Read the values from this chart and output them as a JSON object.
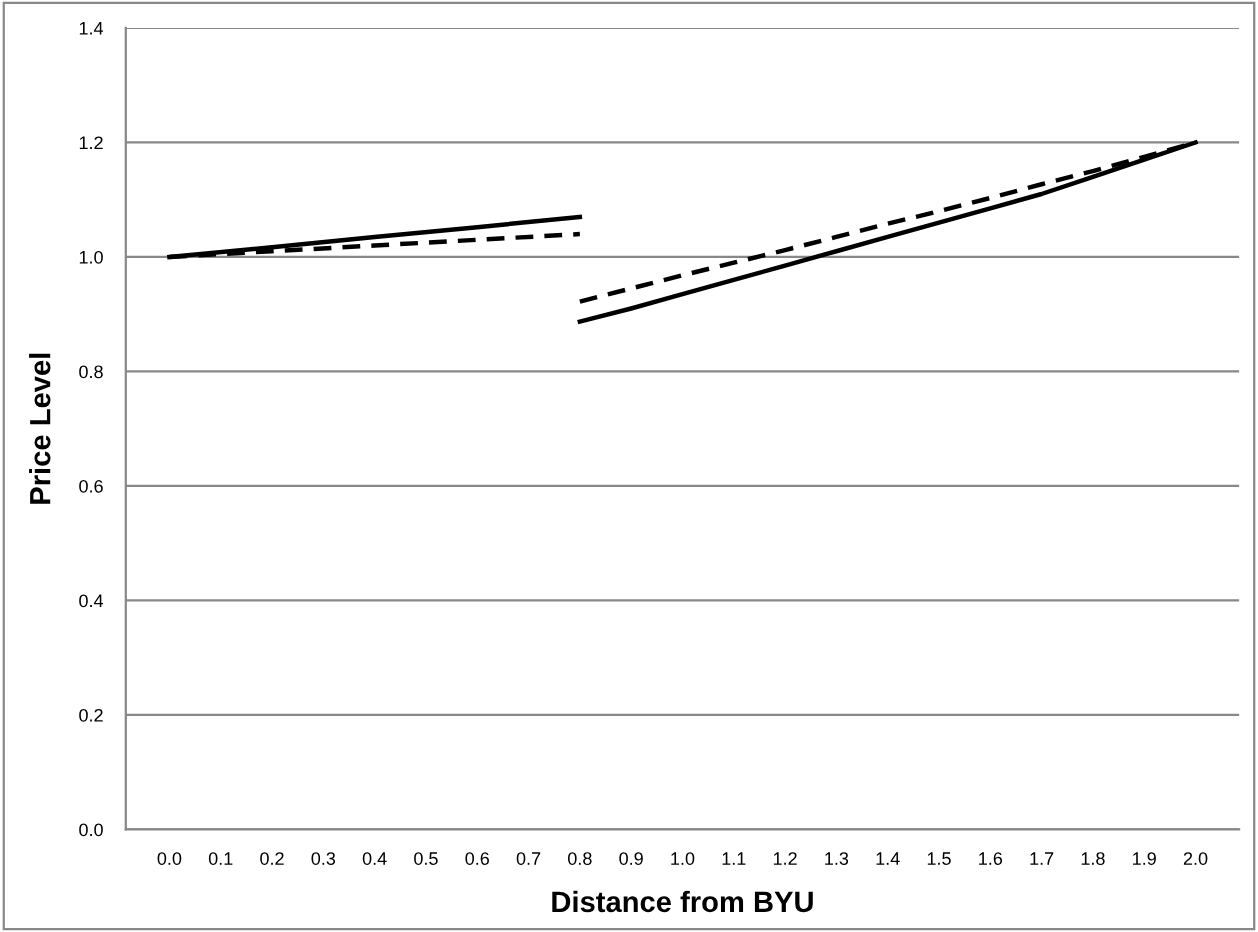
{
  "chart_data": {
    "type": "line",
    "xlabel": "Distance from BYU",
    "ylabel": "Price Level",
    "xlim": [
      -0.085,
      2.085
    ],
    "xticks": [
      {
        "value": 0,
        "label": "0.0"
      },
      {
        "value": 0.1,
        "label": "0.1"
      },
      {
        "value": 0.2,
        "label": "0.2"
      },
      {
        "value": 0.3,
        "label": "0.3"
      },
      {
        "value": 0.4,
        "label": "0.4"
      },
      {
        "value": 0.5,
        "label": "0.5"
      },
      {
        "value": 0.6,
        "label": "0.6"
      },
      {
        "value": 0.7,
        "label": "0.7"
      },
      {
        "value": 0.8,
        "label": "0.8"
      },
      {
        "value": 0.9,
        "label": "0.9"
      },
      {
        "value": 1.0,
        "label": "1.0"
      },
      {
        "value": 1.1,
        "label": "1.1"
      },
      {
        "value": 1.2,
        "label": "1.2"
      },
      {
        "value": 1.3,
        "label": "1.3"
      },
      {
        "value": 1.4,
        "label": "1.4"
      },
      {
        "value": 1.5,
        "label": "1.5"
      },
      {
        "value": 1.6,
        "label": "1.6"
      },
      {
        "value": 1.7,
        "label": "1.7"
      },
      {
        "value": 1.8,
        "label": "1.8"
      },
      {
        "value": 1.9,
        "label": "1.9"
      },
      {
        "value": 2.0,
        "label": "2.0"
      }
    ],
    "ylim": [
      0,
      1.4
    ],
    "yticks": [
      {
        "value": 0,
        "label": "0.0"
      },
      {
        "value": 0.2,
        "label": "0.2"
      },
      {
        "value": 0.4,
        "label": "0.4"
      },
      {
        "value": 0.6,
        "label": "0.6"
      },
      {
        "value": 0.8,
        "label": "0.8"
      },
      {
        "value": 1.0,
        "label": "1.0"
      },
      {
        "value": 1.2,
        "label": "1.2"
      },
      {
        "value": 1.4,
        "label": "1.4"
      }
    ],
    "grid": "y",
    "marker": "none",
    "series": [
      {
        "color": "#000000",
        "line_style": "solid",
        "x": [
          0,
          0.2,
          0.4,
          0.6,
          0.8
        ],
        "values": [
          1.0,
          1.017,
          1.035,
          1.052,
          1.07
        ]
      },
      {
        "color": "#000000",
        "line_style": "dashed",
        "x": [
          0,
          0.2,
          0.4,
          0.6,
          0.8
        ],
        "values": [
          1.0,
          1.01,
          1.02,
          1.03,
          1.04
        ]
      },
      {
        "color": "#000000",
        "line_style": "solid",
        "x": [
          0.8,
          0.9,
          1.0,
          1.1,
          1.2,
          1.3,
          1.4,
          1.5,
          1.6,
          1.7,
          1.8,
          1.9,
          2.0
        ],
        "values": [
          0.887,
          0.91,
          0.935,
          0.96,
          0.985,
          1.01,
          1.035,
          1.06,
          1.085,
          1.11,
          1.14,
          1.17,
          1.2
        ]
      },
      {
        "color": "#000000",
        "line_style": "dashed",
        "x": [
          0.8,
          0.9,
          1.0,
          1.1,
          1.2,
          1.3,
          1.4,
          1.5,
          1.6,
          1.7,
          1.8,
          1.9,
          2.0
        ],
        "values": [
          0.922,
          0.945,
          0.968,
          0.99,
          1.012,
          1.035,
          1.058,
          1.08,
          1.103,
          1.127,
          1.15,
          1.175,
          1.2
        ]
      }
    ]
  }
}
